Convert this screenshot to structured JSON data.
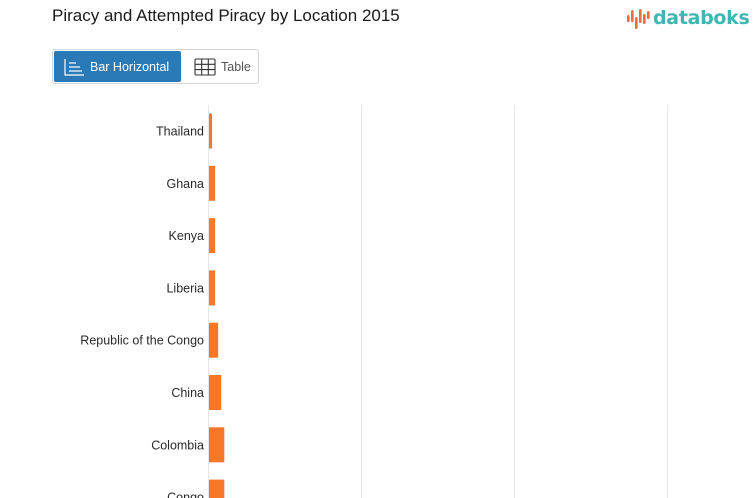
{
  "header": {
    "title": "Piracy and Attempted Piracy by Location 2015",
    "logo_text": "databoks"
  },
  "view_switch": {
    "bar_label": "Bar Horizontal",
    "table_label": "Table",
    "active": "bar"
  },
  "colors": {
    "bar": "#f5782a",
    "accent": "#2a7ab8",
    "brand": "#3fb6b3",
    "grid": "#e6e6e6"
  },
  "chart_data": {
    "type": "bar",
    "orientation": "horizontal",
    "title": "Piracy and Attempted Piracy by Location 2015",
    "categories": [
      "Thailand",
      "Ghana",
      "Kenya",
      "Liberia",
      "Republic of the Congo",
      "China",
      "Colombia",
      "Congo"
    ],
    "values": [
      1,
      2,
      2,
      2,
      3,
      4,
      5,
      5
    ],
    "xlim": [
      0,
      150
    ],
    "grid": true,
    "legend": "none"
  }
}
